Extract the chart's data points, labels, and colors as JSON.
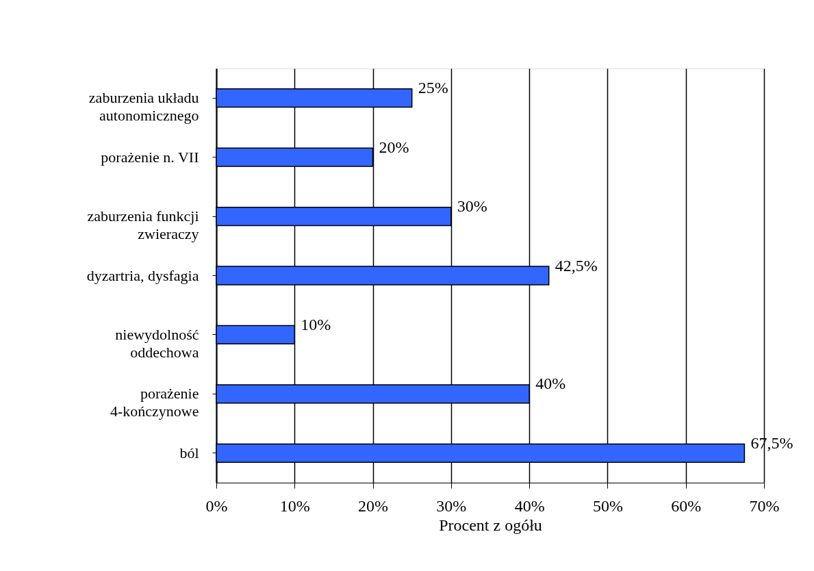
{
  "chart_data": {
    "type": "bar",
    "orientation": "horizontal",
    "categories": [
      "zaburzenia układu autonomicznego",
      "porażenie n. VII",
      "zaburzenia funkcji zwieraczy",
      "dyzartria, dysfagia",
      "niewydolność oddechowa",
      "porażenie 4-kończynowe",
      "ból"
    ],
    "values": [
      25,
      20,
      30,
      42.5,
      10,
      40,
      67.5
    ],
    "value_labels": [
      "25%",
      "20%",
      "30%",
      "42,5%",
      "10%",
      "40%",
      "67,5%"
    ],
    "color": "#3366ff",
    "xlabel": "Procent z ogółu",
    "xlim": [
      0,
      70
    ],
    "xticks": [
      {
        "value": 0,
        "label": "0%"
      },
      {
        "value": 10,
        "label": "10%"
      },
      {
        "value": 20,
        "label": "20%"
      },
      {
        "value": 30,
        "label": "30%"
      },
      {
        "value": 40,
        "label": "40%"
      },
      {
        "value": 50,
        "label": "50%"
      },
      {
        "value": 60,
        "label": "60%"
      },
      {
        "value": 70,
        "label": "70%"
      }
    ],
    "grid": "x"
  }
}
